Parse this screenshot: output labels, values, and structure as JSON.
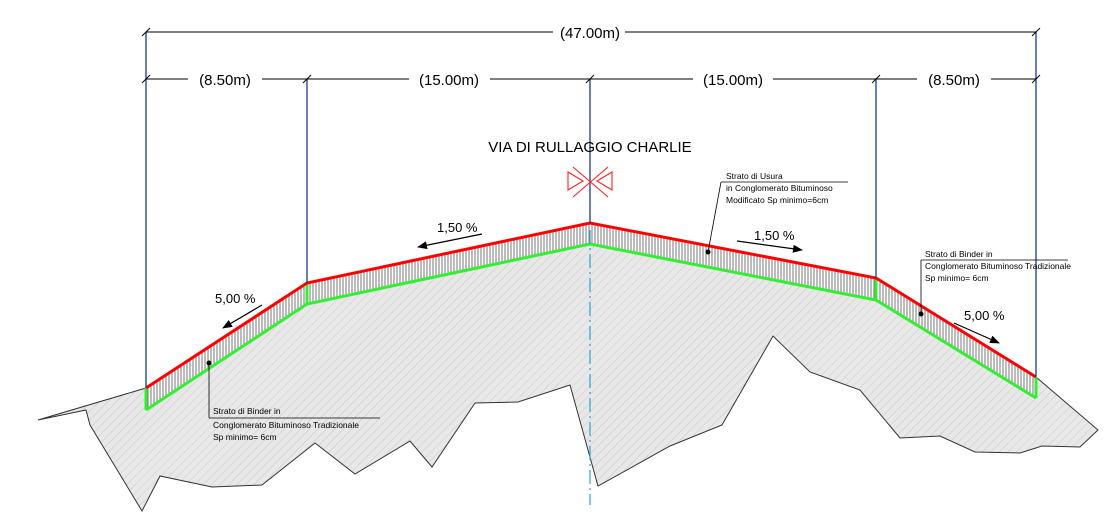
{
  "title": "VIA DI RULLAGGIO  CHARLIE",
  "dimensions": {
    "total": "(47.00m)",
    "segments": [
      "(8.50m)",
      "(15.00m)",
      "(15.00m)",
      "(8.50m)"
    ]
  },
  "slopes": {
    "left_shoulder": "5,00 %",
    "left_runway": "1,50 %",
    "right_runway": "1,50 %",
    "right_shoulder": "5,00 %"
  },
  "notes": {
    "usura": [
      "Strato di Usura",
      "in Conglomerato Bituminoso",
      "Modificato Sp minimo=6cm"
    ],
    "binder_right": [
      "Strato di Binder  in",
      "Conglomerato Bituminoso Tradizionale",
      "Sp minimo= 6cm"
    ],
    "binder_left": [
      "Strato di Binder  in",
      "Conglomerato Bituminoso Tradizionale",
      "Sp minimo= 6cm"
    ]
  },
  "colors": {
    "surface_layer": "#ff0000",
    "binder_layer": "#33ee33",
    "dimension_lines": "#1a3a8a",
    "centerline": "#2aa7d8",
    "ground_fill": "#e6e6e6"
  }
}
